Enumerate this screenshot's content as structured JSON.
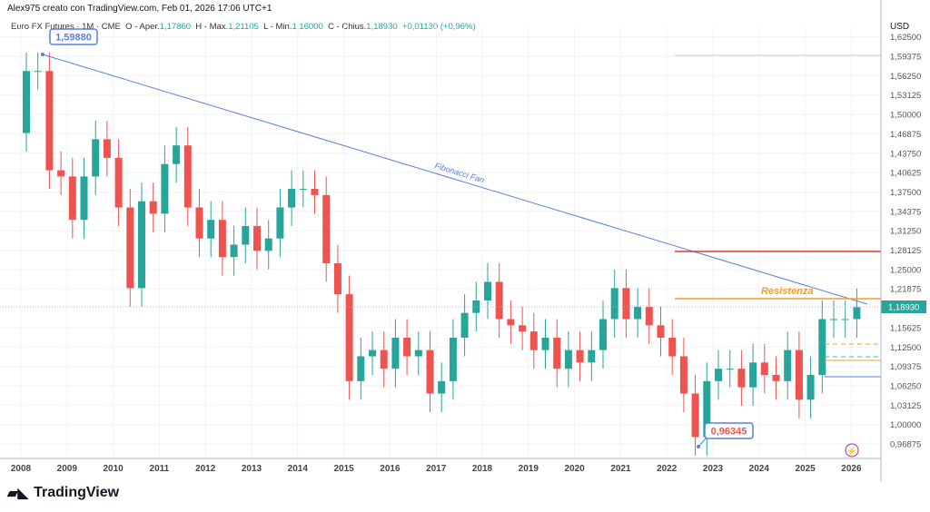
{
  "header": {
    "credit": "Alex975 creato con TradingView.com, Feb 01, 2026 17:06 UTC+1",
    "symbol": "Euro FX Futures · 1M · CME",
    "open_label": "O - Aper.",
    "open": "1,17860",
    "high_label": "H - Max.",
    "high": "1,21105",
    "low_label": "L - Min.",
    "low": "1,16000",
    "close_label": "C - Chius.",
    "close": "1,18930",
    "change": "+0,01130 (+0,96%)"
  },
  "axis": {
    "currency": "USD",
    "price_ticks": [
      "1,62500",
      "1,59375",
      "1,56250",
      "1,53125",
      "1,50000",
      "1,46875",
      "1,43750",
      "1,40625",
      "1,37500",
      "1,34375",
      "1,31250",
      "1,28125",
      "1,25000",
      "1,21875",
      "1,18930",
      "1,15625",
      "1,12500",
      "1,09375",
      "1,06250",
      "1,03125",
      "1,00000",
      "0,96875"
    ],
    "years": [
      "2008",
      "2009",
      "2010",
      "2011",
      "2012",
      "2013",
      "2014",
      "2015",
      "2016",
      "2017",
      "2018",
      "2019",
      "2020",
      "2021",
      "2022",
      "2023",
      "2024",
      "2025",
      "2026"
    ],
    "last_price": "1,18930"
  },
  "annotations": {
    "high_label": "1,59880",
    "low_label": "0,96345",
    "fan_label": "Fibonacci Fan",
    "resistance_label": "Resistenza"
  },
  "colors": {
    "up": "#26a69a",
    "down": "#ef5350",
    "fan": "#5b7fe0",
    "resistance": "#f59b2b",
    "red_line": "#e53935",
    "last_price": "#26a69a"
  },
  "chart_data": {
    "type": "candlestick",
    "interval": "quarterly approximation",
    "start": "2008-Q1",
    "first_open": 1.47,
    "closes": [
      1.57,
      1.57,
      1.41,
      1.4,
      1.33,
      1.4,
      1.46,
      1.43,
      1.35,
      1.22,
      1.36,
      1.34,
      1.42,
      1.45,
      1.35,
      1.3,
      1.33,
      1.27,
      1.29,
      1.32,
      1.28,
      1.3,
      1.35,
      1.38,
      1.38,
      1.37,
      1.26,
      1.21,
      1.07,
      1.11,
      1.12,
      1.09,
      1.14,
      1.11,
      1.12,
      1.05,
      1.07,
      1.14,
      1.18,
      1.2,
      1.23,
      1.17,
      1.16,
      1.15,
      1.12,
      1.14,
      1.09,
      1.12,
      1.1,
      1.12,
      1.17,
      1.22,
      1.17,
      1.19,
      1.16,
      1.14,
      1.11,
      1.05,
      0.98,
      1.07,
      1.09,
      1.09,
      1.06,
      1.1,
      1.08,
      1.07,
      1.12,
      1.04,
      1.08,
      1.17,
      1.17,
      1.17,
      1.1893
    ]
  },
  "footer": {
    "brand": "TradingView"
  }
}
